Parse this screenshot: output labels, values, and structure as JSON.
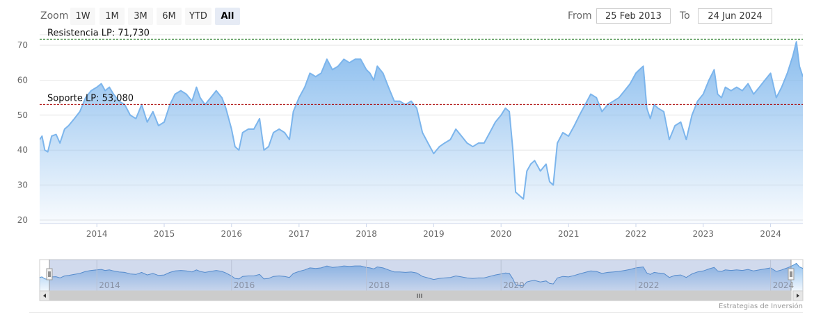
{
  "toolbar": {
    "zoom_label": "Zoom",
    "buttons": [
      "1W",
      "1M",
      "3M",
      "6M",
      "YTD",
      "All"
    ],
    "active": "All",
    "from_label": "From",
    "from_value": "25 Feb 2013",
    "to_label": "To",
    "to_value": "24 Jun 2024"
  },
  "colors": {
    "series": "#7cb5ec",
    "resistance": "#006600",
    "support": "#aa0000",
    "navigator_mask": "rgba(102,133,194,0.3)"
  },
  "chart_data": {
    "type": "area",
    "title": "",
    "xlabel": "",
    "ylabel": "",
    "x_start": "2013-02-25",
    "x_end": "2024-06-24",
    "x_ticks": [
      "2014",
      "2015",
      "2016",
      "2017",
      "2018",
      "2019",
      "2020",
      "2021",
      "2022",
      "2023",
      "2024"
    ],
    "y_ticks": [
      20,
      30,
      40,
      50,
      60,
      70
    ],
    "ylim": [
      19,
      73
    ],
    "grid": true,
    "plot_lines": [
      {
        "label": "Resistencia LP: 71,730",
        "value": 71.73
      },
      {
        "label": "Soporte LP: 53,080",
        "value": 53.08
      }
    ],
    "series": [
      {
        "points": [
          [
            "2013-02-25",
            43
          ],
          [
            "2013-03-10",
            44
          ],
          [
            "2013-03-25",
            40
          ],
          [
            "2013-04-10",
            39.5
          ],
          [
            "2013-05-01",
            44
          ],
          [
            "2013-05-25",
            44.5
          ],
          [
            "2013-06-15",
            42
          ],
          [
            "2013-07-10",
            46
          ],
          [
            "2013-08-01",
            47
          ],
          [
            "2013-09-01",
            49
          ],
          [
            "2013-10-01",
            51
          ],
          [
            "2013-11-01",
            55
          ],
          [
            "2013-12-01",
            57
          ],
          [
            "2014-01-01",
            58
          ],
          [
            "2014-01-25",
            59
          ],
          [
            "2014-02-15",
            57
          ],
          [
            "2014-03-10",
            58
          ],
          [
            "2014-04-01",
            56
          ],
          [
            "2014-05-01",
            54
          ],
          [
            "2014-06-01",
            53
          ],
          [
            "2014-07-01",
            50
          ],
          [
            "2014-08-01",
            49
          ],
          [
            "2014-09-01",
            53
          ],
          [
            "2014-10-01",
            48
          ],
          [
            "2014-11-01",
            51
          ],
          [
            "2014-12-01",
            47
          ],
          [
            "2015-01-01",
            48
          ],
          [
            "2015-02-01",
            53
          ],
          [
            "2015-03-01",
            56
          ],
          [
            "2015-04-01",
            57
          ],
          [
            "2015-05-01",
            56
          ],
          [
            "2015-06-01",
            54
          ],
          [
            "2015-06-25",
            58
          ],
          [
            "2015-07-15",
            55
          ],
          [
            "2015-08-10",
            53
          ],
          [
            "2015-09-10",
            55
          ],
          [
            "2015-10-10",
            57
          ],
          [
            "2015-11-10",
            55
          ],
          [
            "2015-12-01",
            52
          ],
          [
            "2016-01-01",
            46
          ],
          [
            "2016-01-20",
            41
          ],
          [
            "2016-02-10",
            40
          ],
          [
            "2016-03-01",
            45
          ],
          [
            "2016-04-01",
            46
          ],
          [
            "2016-05-01",
            46
          ],
          [
            "2016-06-01",
            49
          ],
          [
            "2016-06-25",
            40
          ],
          [
            "2016-07-20",
            41
          ],
          [
            "2016-08-15",
            45
          ],
          [
            "2016-09-15",
            46
          ],
          [
            "2016-10-15",
            45
          ],
          [
            "2016-11-10",
            43
          ],
          [
            "2016-12-01",
            51
          ],
          [
            "2017-01-01",
            55
          ],
          [
            "2017-02-01",
            58
          ],
          [
            "2017-03-01",
            62
          ],
          [
            "2017-04-01",
            61
          ],
          [
            "2017-05-01",
            62
          ],
          [
            "2017-06-01",
            66
          ],
          [
            "2017-07-01",
            63
          ],
          [
            "2017-08-01",
            64
          ],
          [
            "2017-09-01",
            66
          ],
          [
            "2017-10-01",
            65
          ],
          [
            "2017-11-01",
            66
          ],
          [
            "2017-12-01",
            66
          ],
          [
            "2018-01-01",
            63
          ],
          [
            "2018-01-20",
            62
          ],
          [
            "2018-02-10",
            60
          ],
          [
            "2018-03-01",
            64
          ],
          [
            "2018-04-01",
            62
          ],
          [
            "2018-05-01",
            58
          ],
          [
            "2018-06-01",
            54
          ],
          [
            "2018-07-01",
            54
          ],
          [
            "2018-08-01",
            53
          ],
          [
            "2018-09-01",
            54
          ],
          [
            "2018-10-01",
            52
          ],
          [
            "2018-11-01",
            45
          ],
          [
            "2018-12-01",
            42
          ],
          [
            "2019-01-01",
            39
          ],
          [
            "2019-02-01",
            41
          ],
          [
            "2019-03-01",
            42
          ],
          [
            "2019-04-01",
            43
          ],
          [
            "2019-05-01",
            46
          ],
          [
            "2019-06-01",
            44
          ],
          [
            "2019-07-01",
            42
          ],
          [
            "2019-08-01",
            41
          ],
          [
            "2019-09-01",
            42
          ],
          [
            "2019-10-01",
            42
          ],
          [
            "2019-11-01",
            45
          ],
          [
            "2019-12-01",
            48
          ],
          [
            "2020-01-01",
            50
          ],
          [
            "2020-01-25",
            52
          ],
          [
            "2020-02-15",
            51
          ],
          [
            "2020-03-05",
            40
          ],
          [
            "2020-03-20",
            28
          ],
          [
            "2020-04-10",
            27
          ],
          [
            "2020-05-01",
            26
          ],
          [
            "2020-05-20",
            34
          ],
          [
            "2020-06-10",
            36
          ],
          [
            "2020-07-01",
            37
          ],
          [
            "2020-08-01",
            34
          ],
          [
            "2020-09-01",
            36
          ],
          [
            "2020-09-20",
            31
          ],
          [
            "2020-10-10",
            30
          ],
          [
            "2020-11-01",
            42
          ],
          [
            "2020-12-01",
            45
          ],
          [
            "2021-01-01",
            44
          ],
          [
            "2021-02-01",
            47
          ],
          [
            "2021-03-01",
            50
          ],
          [
            "2021-04-01",
            53
          ],
          [
            "2021-05-01",
            56
          ],
          [
            "2021-06-01",
            55
          ],
          [
            "2021-07-01",
            51
          ],
          [
            "2021-08-01",
            53
          ],
          [
            "2021-09-01",
            54
          ],
          [
            "2021-10-01",
            55
          ],
          [
            "2021-11-01",
            57
          ],
          [
            "2021-12-01",
            59
          ],
          [
            "2022-01-01",
            62
          ],
          [
            "2022-01-20",
            63
          ],
          [
            "2022-02-10",
            64
          ],
          [
            "2022-03-01",
            52
          ],
          [
            "2022-03-20",
            49
          ],
          [
            "2022-04-10",
            53
          ],
          [
            "2022-05-01",
            52
          ],
          [
            "2022-06-01",
            51
          ],
          [
            "2022-07-01",
            43
          ],
          [
            "2022-08-01",
            47
          ],
          [
            "2022-09-01",
            48
          ],
          [
            "2022-10-01",
            43
          ],
          [
            "2022-11-01",
            50
          ],
          [
            "2022-12-01",
            54
          ],
          [
            "2023-01-01",
            56
          ],
          [
            "2023-02-01",
            60
          ],
          [
            "2023-03-01",
            63
          ],
          [
            "2023-03-20",
            56
          ],
          [
            "2023-04-10",
            55
          ],
          [
            "2023-05-01",
            58
          ],
          [
            "2023-06-01",
            57
          ],
          [
            "2023-07-01",
            58
          ],
          [
            "2023-08-01",
            57
          ],
          [
            "2023-09-01",
            59
          ],
          [
            "2023-10-01",
            56
          ],
          [
            "2023-11-01",
            58
          ],
          [
            "2023-12-01",
            60
          ],
          [
            "2024-01-01",
            62
          ],
          [
            "2024-02-01",
            55
          ],
          [
            "2024-03-01",
            58
          ],
          [
            "2024-04-01",
            62
          ],
          [
            "2024-05-01",
            67
          ],
          [
            "2024-05-20",
            71
          ],
          [
            "2024-06-05",
            64
          ],
          [
            "2024-06-24",
            61
          ]
        ]
      }
    ]
  }
}
